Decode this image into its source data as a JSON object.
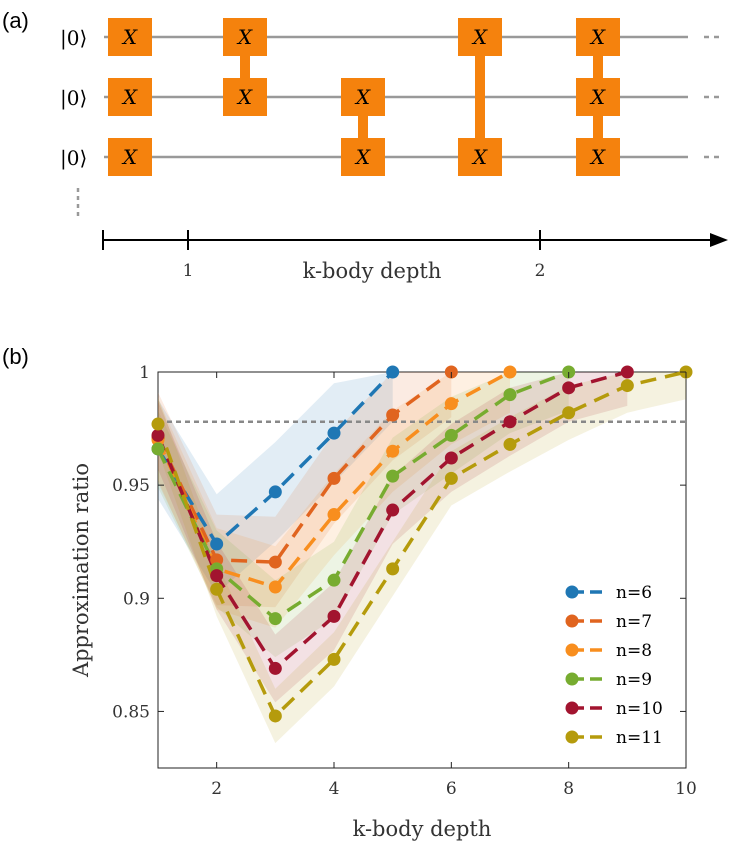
{
  "figure": {
    "panel_a_label": "(a)",
    "panel_b_label": "(b)"
  },
  "circuit": {
    "ket_label": "|0⟩",
    "gate_label": "X",
    "gate_color": "#F5820D",
    "wire_color": "#999999",
    "axis_label": "k-body depth",
    "axis_ticks": [
      "1",
      "2"
    ]
  },
  "chart_data": {
    "type": "line",
    "xlabel": "k-body depth",
    "ylabel": "Approximation ratio",
    "xlim": [
      1,
      10
    ],
    "ylim": [
      0.825,
      1.0
    ],
    "xticks": [
      2,
      4,
      6,
      8,
      10
    ],
    "yticks": [
      0.85,
      0.9,
      0.95,
      1
    ],
    "ytick_labels": [
      "0.85",
      "0.9",
      "0.95",
      "1"
    ],
    "reference_line": 0.978,
    "legend_position": "lower-right",
    "series": [
      {
        "name": "n=6",
        "color": "#1F77B4",
        "x": [
          1,
          2,
          3,
          4,
          5
        ],
        "values": [
          0.966,
          0.924,
          0.947,
          0.973,
          1.0
        ],
        "band": 0.022
      },
      {
        "name": "n=7",
        "color": "#E0641F",
        "x": [
          1,
          2,
          3,
          4,
          5,
          6
        ],
        "values": [
          0.971,
          0.917,
          0.916,
          0.953,
          0.981,
          1.0
        ],
        "band": 0.02
      },
      {
        "name": "n=8",
        "color": "#F88E1E",
        "x": [
          1,
          2,
          3,
          4,
          5,
          6,
          7
        ],
        "values": [
          0.97,
          0.913,
          0.905,
          0.937,
          0.965,
          0.986,
          1.0
        ],
        "band": 0.018
      },
      {
        "name": "n=9",
        "color": "#77AC30",
        "x": [
          1,
          2,
          3,
          4,
          5,
          6,
          7,
          8
        ],
        "values": [
          0.966,
          0.913,
          0.891,
          0.908,
          0.954,
          0.972,
          0.99,
          1.0
        ],
        "band": 0.017
      },
      {
        "name": "n=10",
        "color": "#A2142F",
        "x": [
          1,
          2,
          3,
          4,
          5,
          6,
          7,
          8,
          9
        ],
        "values": [
          0.972,
          0.91,
          0.869,
          0.892,
          0.939,
          0.962,
          0.978,
          0.993,
          1.0
        ],
        "band": 0.015
      },
      {
        "name": "n=11",
        "color": "#B59B0C",
        "x": [
          1,
          2,
          3,
          4,
          5,
          6,
          7,
          8,
          9,
          10
        ],
        "values": [
          0.977,
          0.904,
          0.848,
          0.873,
          0.913,
          0.953,
          0.968,
          0.982,
          0.994,
          1.0
        ],
        "band": 0.012
      }
    ]
  }
}
